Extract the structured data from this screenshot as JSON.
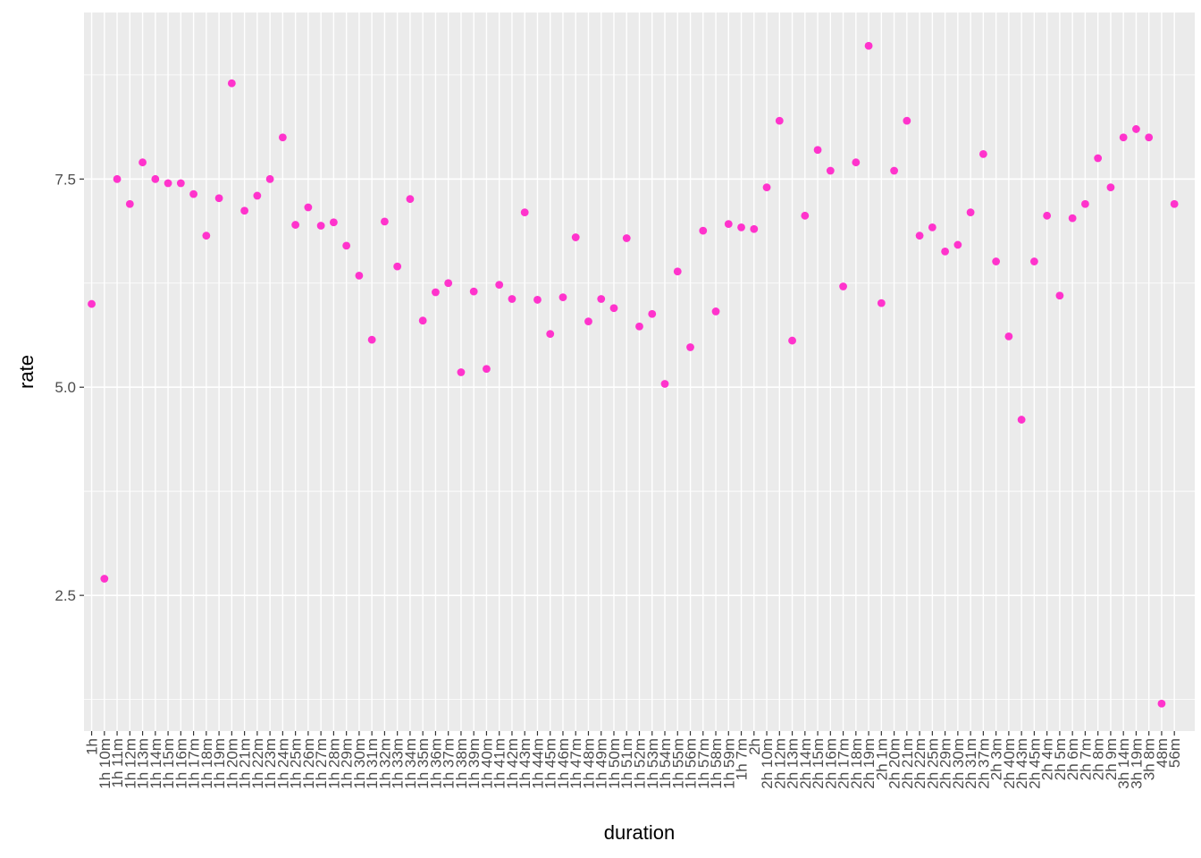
{
  "chart_data": {
    "type": "scatter",
    "xlabel": "duration",
    "ylabel": "rate",
    "ylim": [
      0.87,
      9.5
    ],
    "y_ticks": [
      2.5,
      5.0,
      7.5
    ],
    "grid": true,
    "legend": "none",
    "point_color": "#ff33cc",
    "panel_color": "#ebebeb",
    "categories": [
      "1h",
      "1h 10m",
      "1h 11m",
      "1h 12m",
      "1h 13m",
      "1h 14m",
      "1h 15m",
      "1h 16m",
      "1h 17m",
      "1h 18m",
      "1h 19m",
      "1h 20m",
      "1h 21m",
      "1h 22m",
      "1h 23m",
      "1h 24m",
      "1h 25m",
      "1h 26m",
      "1h 27m",
      "1h 28m",
      "1h 29m",
      "1h 30m",
      "1h 31m",
      "1h 32m",
      "1h 33m",
      "1h 34m",
      "1h 35m",
      "1h 36m",
      "1h 37m",
      "1h 38m",
      "1h 39m",
      "1h 40m",
      "1h 41m",
      "1h 42m",
      "1h 43m",
      "1h 44m",
      "1h 45m",
      "1h 46m",
      "1h 47m",
      "1h 48m",
      "1h 49m",
      "1h 50m",
      "1h 51m",
      "1h 52m",
      "1h 53m",
      "1h 54m",
      "1h 55m",
      "1h 56m",
      "1h 57m",
      "1h 58m",
      "1h 59m",
      "1h 7m",
      "2h",
      "2h 10m",
      "2h 12m",
      "2h 13m",
      "2h 14m",
      "2h 15m",
      "2h 16m",
      "2h 17m",
      "2h 18m",
      "2h 19m",
      "2h 1m",
      "2h 20m",
      "2h 21m",
      "2h 22m",
      "2h 25m",
      "2h 29m",
      "2h 30m",
      "2h 31m",
      "2h 37m",
      "2h 3m",
      "2h 40m",
      "2h 43m",
      "2h 45m",
      "2h 4m",
      "2h 5m",
      "2h 6m",
      "2h 7m",
      "2h 8m",
      "2h 9m",
      "3h 14m",
      "3h 19m",
      "3h 8m",
      "48m",
      "56m"
    ],
    "values": [
      6.0,
      2.7,
      7.5,
      7.2,
      7.7,
      7.5,
      7.45,
      7.45,
      7.32,
      6.82,
      7.27,
      8.65,
      7.12,
      7.3,
      7.5,
      8.0,
      6.95,
      7.16,
      6.94,
      6.98,
      6.7,
      6.34,
      5.57,
      6.99,
      6.45,
      7.26,
      5.8,
      6.14,
      6.25,
      5.18,
      6.15,
      5.22,
      6.23,
      6.06,
      7.1,
      6.05,
      5.64,
      6.08,
      6.8,
      5.79,
      6.06,
      5.95,
      6.79,
      5.73,
      5.88,
      5.04,
      6.39,
      5.48,
      6.88,
      5.91,
      6.96,
      6.92,
      6.9,
      7.4,
      8.2,
      5.56,
      7.06,
      7.85,
      7.6,
      6.21,
      7.7,
      9.1,
      6.01,
      7.6,
      8.2,
      6.82,
      6.92,
      6.63,
      6.71,
      7.1,
      7.8,
      6.51,
      5.61,
      4.61,
      6.51,
      7.06,
      6.1,
      7.03,
      7.2,
      7.75,
      7.4,
      8.0,
      8.1,
      8.0,
      1.2,
      7.2
    ]
  }
}
